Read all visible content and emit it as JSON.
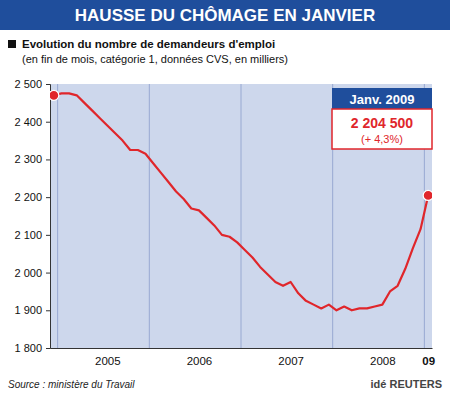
{
  "chart_data": {
    "type": "line",
    "title": "HAUSSE DU CHÔMAGE EN JANVIER",
    "subtitle": [
      "Evolution du nombre de demandeurs d'emploi",
      "(en fin de mois, catégorie 1, données CVS, en milliers)"
    ],
    "annotation": {
      "label": "Janv. 2009",
      "value": "2 204 500",
      "change": "(+ 4,3%)"
    },
    "source": "Source : ministère du Travail",
    "credit": "idé REUTERS",
    "categories": [
      null,
      null,
      null,
      null,
      null,
      null,
      null,
      "2005",
      null,
      null,
      null,
      null,
      null,
      null,
      null,
      null,
      null,
      null,
      null,
      "2006",
      null,
      null,
      null,
      null,
      null,
      null,
      null,
      null,
      null,
      null,
      null,
      "2007",
      null,
      null,
      null,
      null,
      null,
      null,
      null,
      null,
      null,
      null,
      null,
      "2008",
      null,
      null,
      null,
      null,
      null,
      "09"
    ],
    "values": [
      2470,
      2475,
      2475,
      2470,
      2450,
      2430,
      2410,
      2390,
      2370,
      2350,
      2325,
      2325,
      2315,
      2290,
      2265,
      2240,
      2215,
      2195,
      2170,
      2165,
      2145,
      2125,
      2100,
      2095,
      2080,
      2060,
      2040,
      2015,
      1995,
      1975,
      1965,
      1975,
      1945,
      1925,
      1915,
      1905,
      1915,
      1900,
      1910,
      1900,
      1905,
      1905,
      1910,
      1915,
      1950,
      1965,
      2010,
      2065,
      2115,
      2204.5
    ],
    "color": "#e0262b",
    "marker": "endpoints",
    "grid": false,
    "ylim": [
      1800,
      2500
    ],
    "yticks": [
      {
        "value": 1800,
        "label": "1 800"
      },
      {
        "value": 1900,
        "label": "1 900"
      },
      {
        "value": 2000,
        "label": "2 000"
      },
      {
        "value": 2100,
        "label": "2 100"
      },
      {
        "value": 2200,
        "label": "2 200"
      },
      {
        "value": 2300,
        "label": "2 300"
      },
      {
        "value": 2400,
        "label": "2 400"
      },
      {
        "value": 2500,
        "label": "2 500"
      }
    ]
  }
}
